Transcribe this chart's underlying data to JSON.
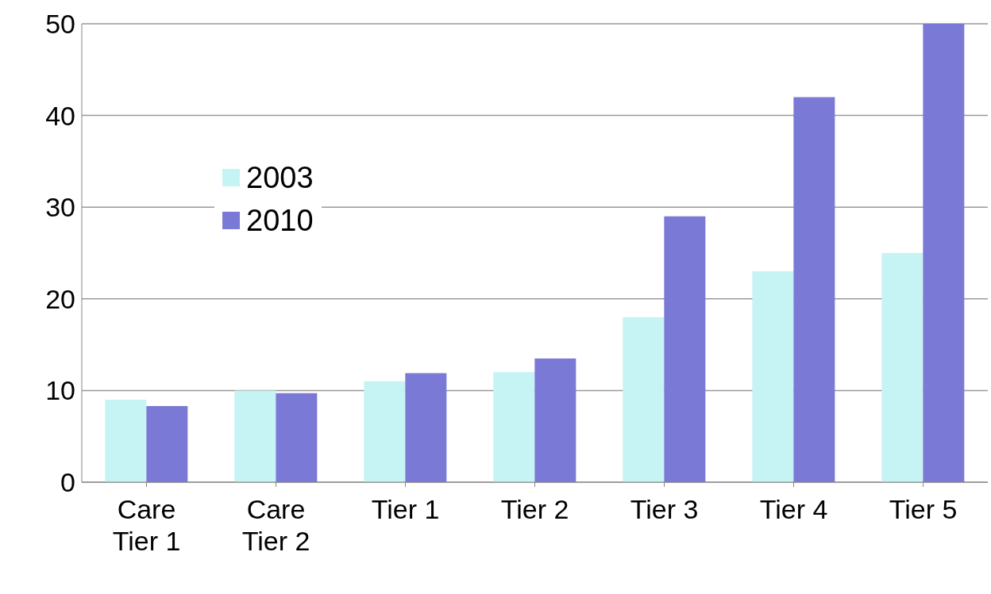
{
  "chart_data": {
    "type": "bar",
    "categories": [
      "Care Tier 1",
      "Care Tier 2",
      "Tier 1",
      "Tier 2",
      "Tier 3",
      "Tier 4",
      "Tier 5"
    ],
    "series": [
      {
        "name": "2003",
        "color": "#c6f3f3",
        "values": [
          9,
          10,
          11,
          12,
          18,
          23,
          25
        ]
      },
      {
        "name": "2010",
        "color": "#7a7ad6",
        "values": [
          8.3,
          9.7,
          11.9,
          13.5,
          29,
          42,
          50
        ]
      }
    ],
    "ylim": [
      0,
      50
    ],
    "yticks": [
      0,
      10,
      20,
      30,
      40,
      50
    ],
    "grid": "y",
    "legend": "left"
  }
}
